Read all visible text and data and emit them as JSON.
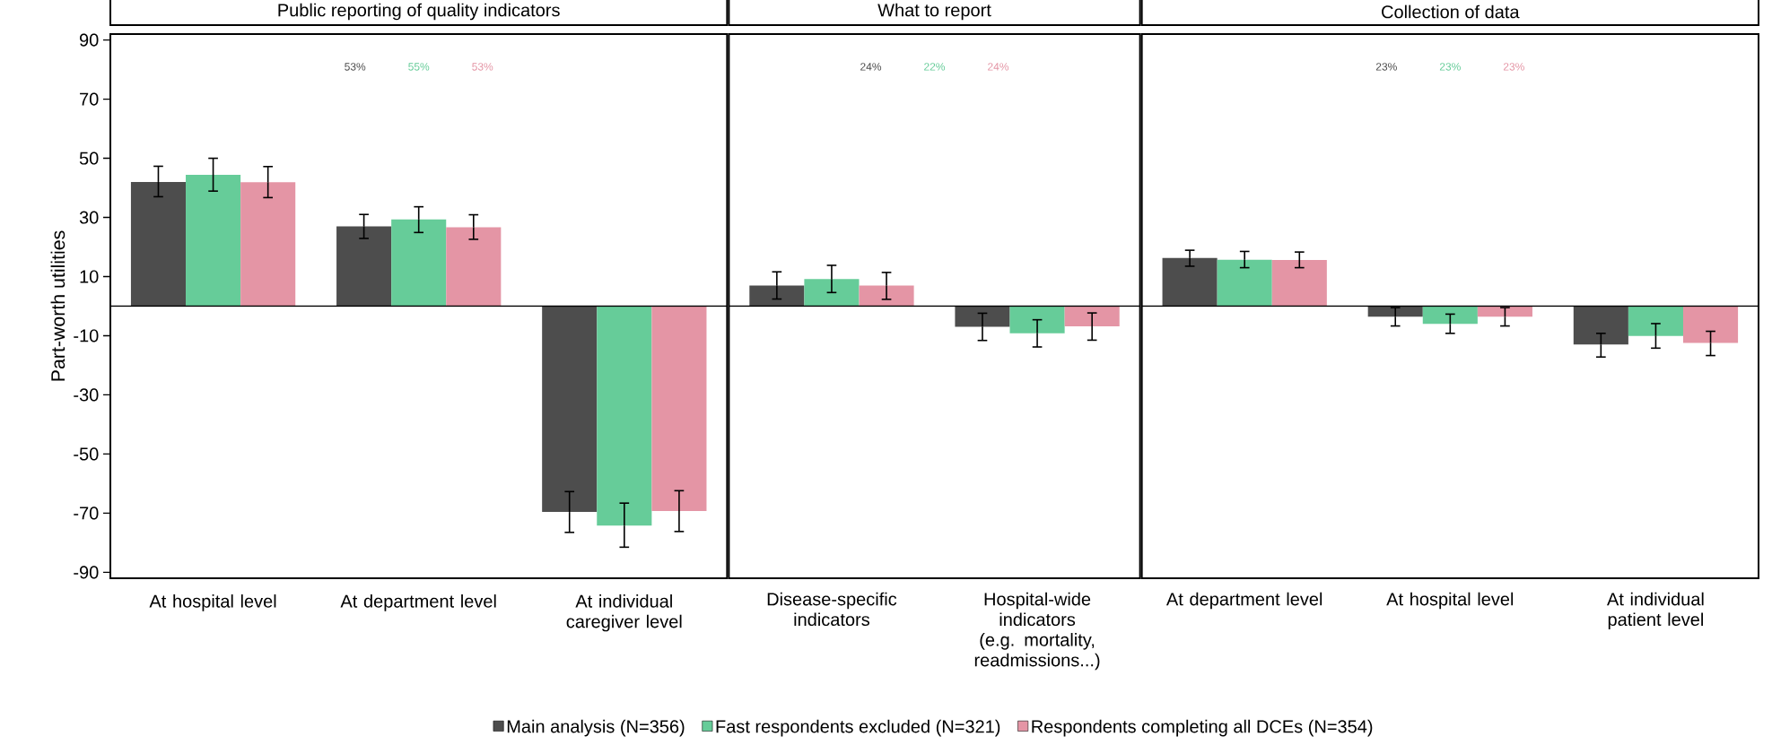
{
  "chart_data": [
    {
      "type": "bar",
      "title": "Public reporting of quality indicators",
      "ylabel": "Part-worth utilities",
      "categories": [
        "At hospital level",
        "At department level",
        "At individual caregiver level"
      ],
      "series": [
        {
          "name": "Main analysis (N=356)",
          "color": "#4d4d4d",
          "values": [
            42.0,
            27.0,
            -69.6
          ],
          "errors": [
            [
              37.0,
              47.3
            ],
            [
              22.9,
              31.0
            ],
            [
              -76.5,
              -62.7
            ]
          ]
        },
        {
          "name": "Fast respondents excluded (N=321)",
          "color": "#66cc99",
          "values": [
            44.4,
            29.3,
            -74.2
          ],
          "errors": [
            [
              38.9,
              50.0
            ],
            [
              24.9,
              33.6
            ],
            [
              -81.5,
              -66.6
            ]
          ]
        },
        {
          "name": "Respondents completing all DCEs (N=354)",
          "color": "#e495a5",
          "values": [
            41.9,
            26.7,
            -69.3
          ],
          "errors": [
            [
              36.7,
              47.2
            ],
            [
              22.6,
              30.9
            ],
            [
              -76.2,
              -62.4
            ]
          ]
        }
      ],
      "annotations": [
        "53%",
        "55%",
        "53%"
      ],
      "ylim": [
        -92,
        92
      ],
      "yticks": [
        -90,
        -70,
        -50,
        -30,
        -10,
        10,
        30,
        50,
        70,
        90
      ],
      "ref_lines": [
        {
          "axis": "y",
          "value": 0
        }
      ],
      "legend": "bottom"
    },
    {
      "type": "bar",
      "title": "What to report",
      "categories": [
        "Disease-specific indicators",
        "Hospital-wide indicators (e.g. mortality, readmissions...)"
      ],
      "series": [
        {
          "color": "#4d4d4d",
          "values": [
            7.0,
            -7.0
          ],
          "errors": [
            [
              2.4,
              11.6
            ],
            [
              -11.6,
              -2.4
            ]
          ]
        },
        {
          "color": "#66cc99",
          "values": [
            9.2,
            -9.2
          ],
          "errors": [
            [
              4.6,
              13.8
            ],
            [
              -13.8,
              -4.6
            ]
          ]
        },
        {
          "color": "#e495a5",
          "values": [
            7.0,
            -6.8
          ],
          "errors": [
            [
              2.3,
              11.4
            ],
            [
              -11.5,
              -2.3
            ]
          ]
        }
      ],
      "annotations": [
        "24%",
        "22%",
        "24%"
      ],
      "ylim": [
        -92,
        92
      ],
      "tick_labels": "x",
      "ref_lines": [
        {
          "axis": "y",
          "value": 0
        }
      ]
    },
    {
      "type": "bar",
      "title": "Collection of data",
      "categories": [
        "At department level",
        "At hospital level",
        "At individual patient level"
      ],
      "series": [
        {
          "color": "#4d4d4d",
          "values": [
            16.3,
            -3.6,
            -13.0
          ],
          "errors": [
            [
              13.5,
              18.9
            ],
            [
              -6.7,
              -0.5
            ],
            [
              -17.2,
              -9.2
            ]
          ]
        },
        {
          "color": "#66cc99",
          "values": [
            15.7,
            -6.0,
            -10.1
          ],
          "errors": [
            [
              13.0,
              18.5
            ],
            [
              -9.2,
              -2.7
            ],
            [
              -14.2,
              -5.9
            ]
          ]
        },
        {
          "color": "#e495a5",
          "values": [
            15.6,
            -3.6,
            -12.4
          ],
          "errors": [
            [
              13.0,
              18.3
            ],
            [
              -6.7,
              -0.5
            ],
            [
              -16.7,
              -8.5
            ]
          ]
        }
      ],
      "annotations": [
        "23%",
        "23%",
        "23%"
      ],
      "ylim": [
        -92,
        92
      ],
      "tick_labels": "x",
      "ref_lines": [
        {
          "axis": "y",
          "value": 0
        }
      ]
    }
  ]
}
